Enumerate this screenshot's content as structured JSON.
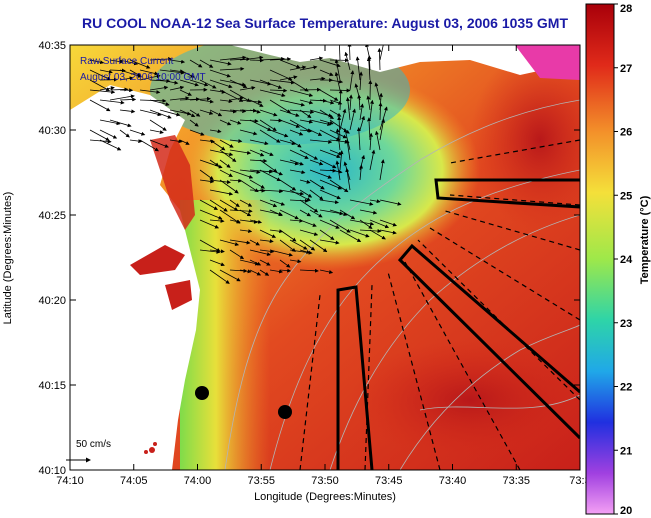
{
  "title": "RU COOL  NOAA-12  Sea Surface Temperature:  August 03, 2006 1035 GMT",
  "legend_box": {
    "line1": "Raw Surface Current",
    "line2": "August 03, 2006 10:00 GMT"
  },
  "scale_label": "50 cm/s",
  "axes": {
    "xlabel": "Longitude (Degrees:Minutes)",
    "ylabel": "Latitude (Degrees:Minutes)",
    "xticks": [
      "74:10",
      "74:05",
      "74:00",
      "73:55",
      "73:50",
      "73:45",
      "73:40",
      "73:35",
      "73:3"
    ],
    "yticks": [
      "40:35",
      "40:30",
      "40:25",
      "40:20",
      "40:15",
      "40:10"
    ]
  },
  "colorbar": {
    "label": "Temperature (°C)",
    "ticks": [
      "28",
      "27",
      "26",
      "25",
      "24",
      "23",
      "22",
      "21",
      "20"
    ],
    "min": 20,
    "max": 28
  },
  "colors": {
    "title": "#1a1aa6",
    "land": "#ffffff",
    "warm": "#d42a1a",
    "cool": "#38c8b0"
  }
}
